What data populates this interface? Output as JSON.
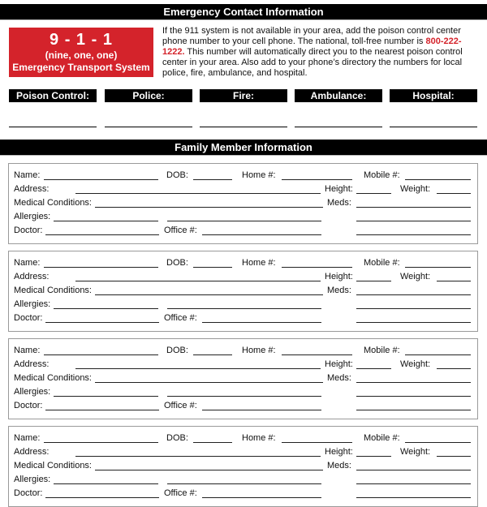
{
  "header": {
    "title": "Emergency Contact Information"
  },
  "emergency_box": {
    "number": "9 - 1 - 1",
    "spelled": "(nine, one, one)",
    "system": "Emergency Transport System",
    "color": "#d4232b"
  },
  "intro": {
    "before": "If the 911 system is not available in your area, add the poison control center phone number to your cell phone. The national, toll-free number is ",
    "phone": "800-222-1222.",
    "after": " This number will automatically direct you to the nearest poison control center in your area. Also add to your phone’s directory the numbers for local police, fire, ambulance, and hospital."
  },
  "contacts": [
    {
      "label": "Poison Control:"
    },
    {
      "label": "Police:"
    },
    {
      "label": "Fire:"
    },
    {
      "label": "Ambulance:"
    },
    {
      "label": "Hospital:"
    }
  ],
  "family_section": {
    "title": "Family Member Information"
  },
  "member_fields": {
    "name": "Name:",
    "dob": "DOB:",
    "home": "Home #:",
    "mobile": "Mobile #:",
    "address": "Address:",
    "height": "Height:",
    "weight": "Weight:",
    "medical": "Medical Conditions:",
    "meds": "Meds:",
    "allergies": "Allergies:",
    "doctor": "Doctor:",
    "office": "Office #:"
  },
  "member_count": 4
}
